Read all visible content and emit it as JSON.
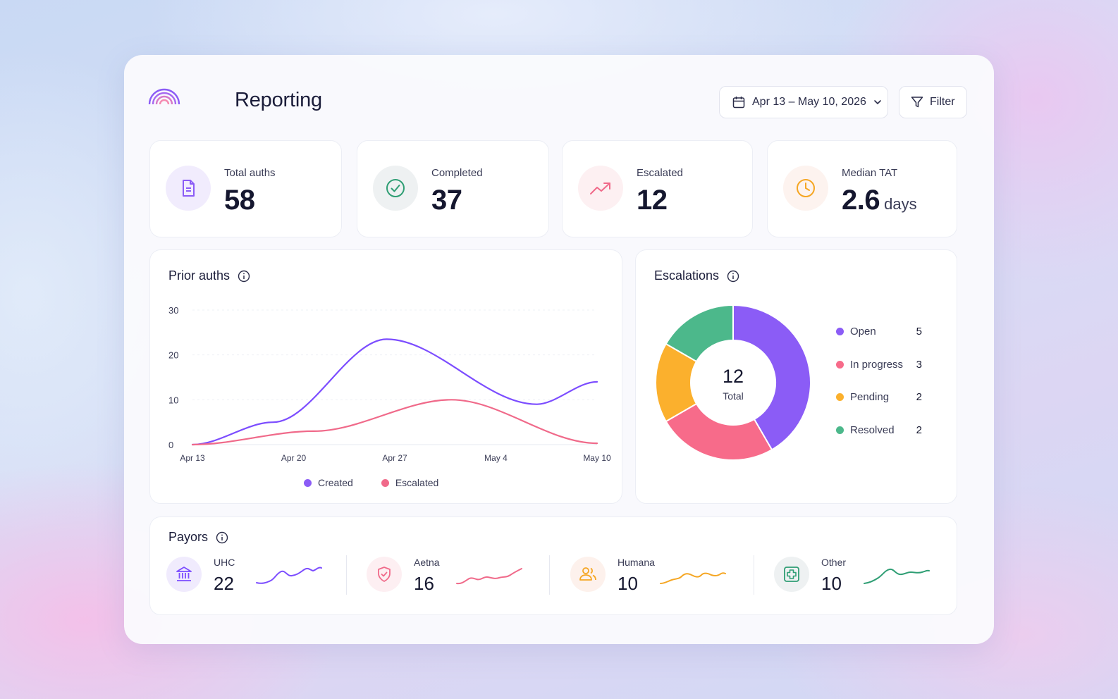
{
  "header": {
    "title": "Reporting",
    "date_range": "Apr 13 – May 10, 2026",
    "filter_label": "Filter"
  },
  "stats": [
    {
      "label": "Total auths",
      "value": "58",
      "icon": "document-icon",
      "color": "#8b5cf6"
    },
    {
      "label": "Completed",
      "value": "37",
      "icon": "check-circle-icon",
      "color": "#2f9e74"
    },
    {
      "label": "Escalated",
      "value": "12",
      "icon": "trending-up-icon",
      "color": "#f06a8a"
    },
    {
      "label": "Median TAT",
      "value": "2.6",
      "unit": "days",
      "icon": "clock-icon",
      "color": "#f5a623"
    }
  ],
  "prior_auths": {
    "title": "Prior auths",
    "legend": {
      "created": "Created",
      "escalated": "Escalated"
    },
    "chart_data": {
      "type": "line",
      "x": [
        "Apr 13",
        "Apr 20",
        "Apr 27",
        "May 4",
        "May 10"
      ],
      "ylim": [
        0,
        30
      ],
      "yticks": [
        "0",
        "10",
        "20",
        "30"
      ],
      "series": [
        {
          "name": "Created",
          "color": "#7c4dff",
          "points": [
            [
              0,
              0
            ],
            [
              0.2,
              5
            ],
            [
              0.48,
              23.5
            ],
            [
              0.85,
              9
            ],
            [
              1,
              14
            ]
          ]
        },
        {
          "name": "Escalated",
          "color": "#f06a8a",
          "points": [
            [
              0,
              0
            ],
            [
              0.3,
              3
            ],
            [
              0.64,
              10
            ],
            [
              1,
              0.3
            ]
          ]
        }
      ]
    }
  },
  "escalations": {
    "title": "Escalations",
    "total": "12",
    "total_label": "Total",
    "chart_data": {
      "type": "pie",
      "slices": [
        {
          "label": "Open",
          "value": 5,
          "color": "#8b5cf6"
        },
        {
          "label": "In progress",
          "value": 3,
          "color": "#f76b8a"
        },
        {
          "label": "Pending",
          "value": 2,
          "color": "#fbb02d"
        },
        {
          "label": "Resolved",
          "value": 2,
          "color": "#4cb88b"
        }
      ]
    },
    "legend": [
      {
        "label": "Open",
        "value": "5",
        "color": "#8b5cf6"
      },
      {
        "label": "In progress",
        "value": "3",
        "color": "#f76b8a"
      },
      {
        "label": "Pending",
        "value": "2",
        "color": "#fbb02d"
      },
      {
        "label": "Resolved",
        "value": "2",
        "color": "#4cb88b"
      }
    ]
  },
  "payors": {
    "title": "Payors",
    "items": [
      {
        "name": "UHC",
        "value": "22",
        "icon": "bank-icon",
        "color": "#7c4dff"
      },
      {
        "name": "Aetna",
        "value": "16",
        "icon": "shield-check-icon",
        "color": "#f06a8a"
      },
      {
        "name": "Humana",
        "value": "10",
        "icon": "users-icon",
        "color": "#f5a623"
      },
      {
        "name": "Other",
        "value": "10",
        "icon": "medical-cross-icon",
        "color": "#2f9e74"
      }
    ]
  }
}
